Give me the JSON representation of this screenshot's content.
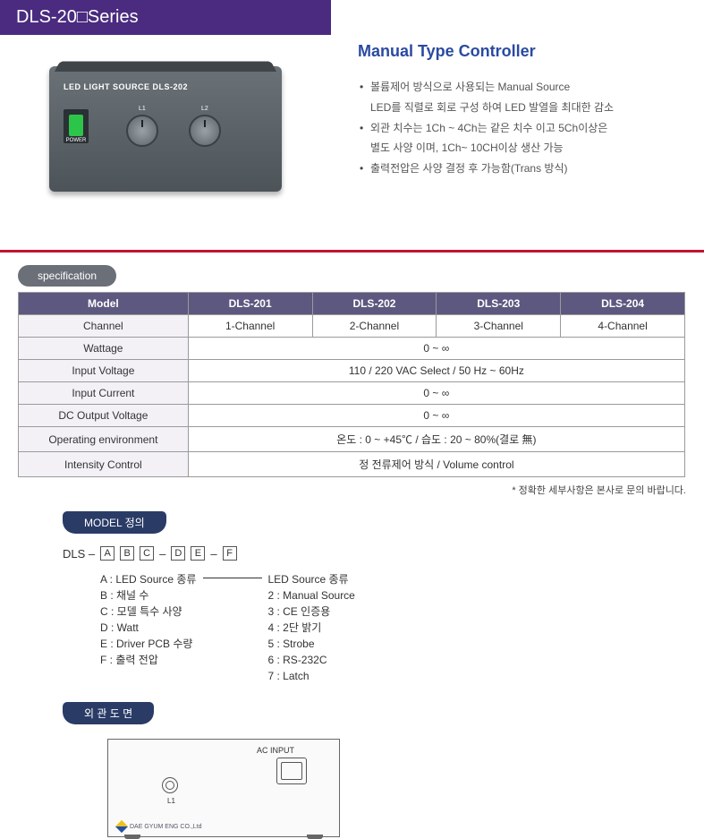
{
  "series_title": "DLS-20□Series",
  "main_title": "Manual Type Controller",
  "bullets": [
    {
      "line1": "볼륨제어 방식으로 사용되는 Manual Source",
      "line2": "LED를 직렬로 회로 구성 하여 LED 발열을 최대한 감소"
    },
    {
      "line1": "외관 치수는 1Ch ~ 4Ch는 같은 치수 이고 5Ch이상은",
      "line2": "별도 사양 이며, 1Ch~ 10CH이상 생산 가능"
    },
    {
      "line1": "출력전압은 사양 결정 후 가능함(Trans 방식)",
      "line2": ""
    }
  ],
  "device_label": "LED LIGHT SOURCE DLS-202",
  "power_label": "POWER",
  "knob_labels": [
    "L1",
    "L2"
  ],
  "spec_tab": "specification",
  "table": {
    "headers": [
      "Model",
      "DLS-201",
      "DLS-202",
      "DLS-203",
      "DLS-204"
    ],
    "rows": [
      {
        "label": "Channel",
        "cells": [
          "1-Channel",
          "2-Channel",
          "3-Channel",
          "4-Channel"
        ],
        "colspan": 1
      },
      {
        "label": "Wattage",
        "cells": [
          "0 ~ ∞"
        ],
        "colspan": 4
      },
      {
        "label": "Input Voltage",
        "cells": [
          "110 / 220 VAC Select / 50 Hz ~ 60Hz"
        ],
        "colspan": 4
      },
      {
        "label": "Input Current",
        "cells": [
          "0 ~ ∞"
        ],
        "colspan": 4
      },
      {
        "label": "DC Output Voltage",
        "cells": [
          "0 ~ ∞"
        ],
        "colspan": 4
      },
      {
        "label": "Operating environment",
        "cells": [
          "온도 : 0 ~ +45℃  / 습도 : 20 ~ 80%(결로 無)"
        ],
        "colspan": 4
      },
      {
        "label": "Intensity Control",
        "cells": [
          "정 전류제어 방식 / Volume control"
        ],
        "colspan": 4
      }
    ],
    "col_widths": [
      "190px",
      "139px",
      "139px",
      "139px",
      "139px"
    ],
    "header_bg": "#5d5880",
    "rowhdr_bg": "#f3f1f6",
    "border_color": "#9a9a9a"
  },
  "note": "* 정확한 세부사항은 본사로 문의 바랍니다.",
  "model_def_tab": "MODEL 정의",
  "model_line_prefix": "DLS –",
  "model_boxes1": [
    "A",
    "B",
    "C"
  ],
  "model_boxes2": [
    "D",
    "E"
  ],
  "model_boxes3": [
    "F"
  ],
  "defs_left_title": "",
  "defs_left": [
    "A : LED Source 종류",
    "B : 채널 수",
    "C : 모델 특수 사양",
    "D : Watt",
    "E : Driver PCB 수량",
    "F : 출력 전압"
  ],
  "defs_right_title": "LED Source 종류",
  "defs_right": [
    "2 : Manual Source",
    "3 : CE 인증용",
    "4 : 2단 밝기",
    "5 : Strobe",
    "6 : RS-232C",
    "7 : Latch"
  ],
  "drawing_tab": "외 관 도 면",
  "ac_label": "AC INPUT",
  "conn_label": "L1",
  "company": "DAE GYUM ENG CO.,Ltd",
  "colors": {
    "series_bg": "#4a2b7f",
    "title_color": "#2a4aa0",
    "separator": "#c41230",
    "chip_bg": "#6a6f78",
    "navy_bg": "#2a3b66"
  }
}
